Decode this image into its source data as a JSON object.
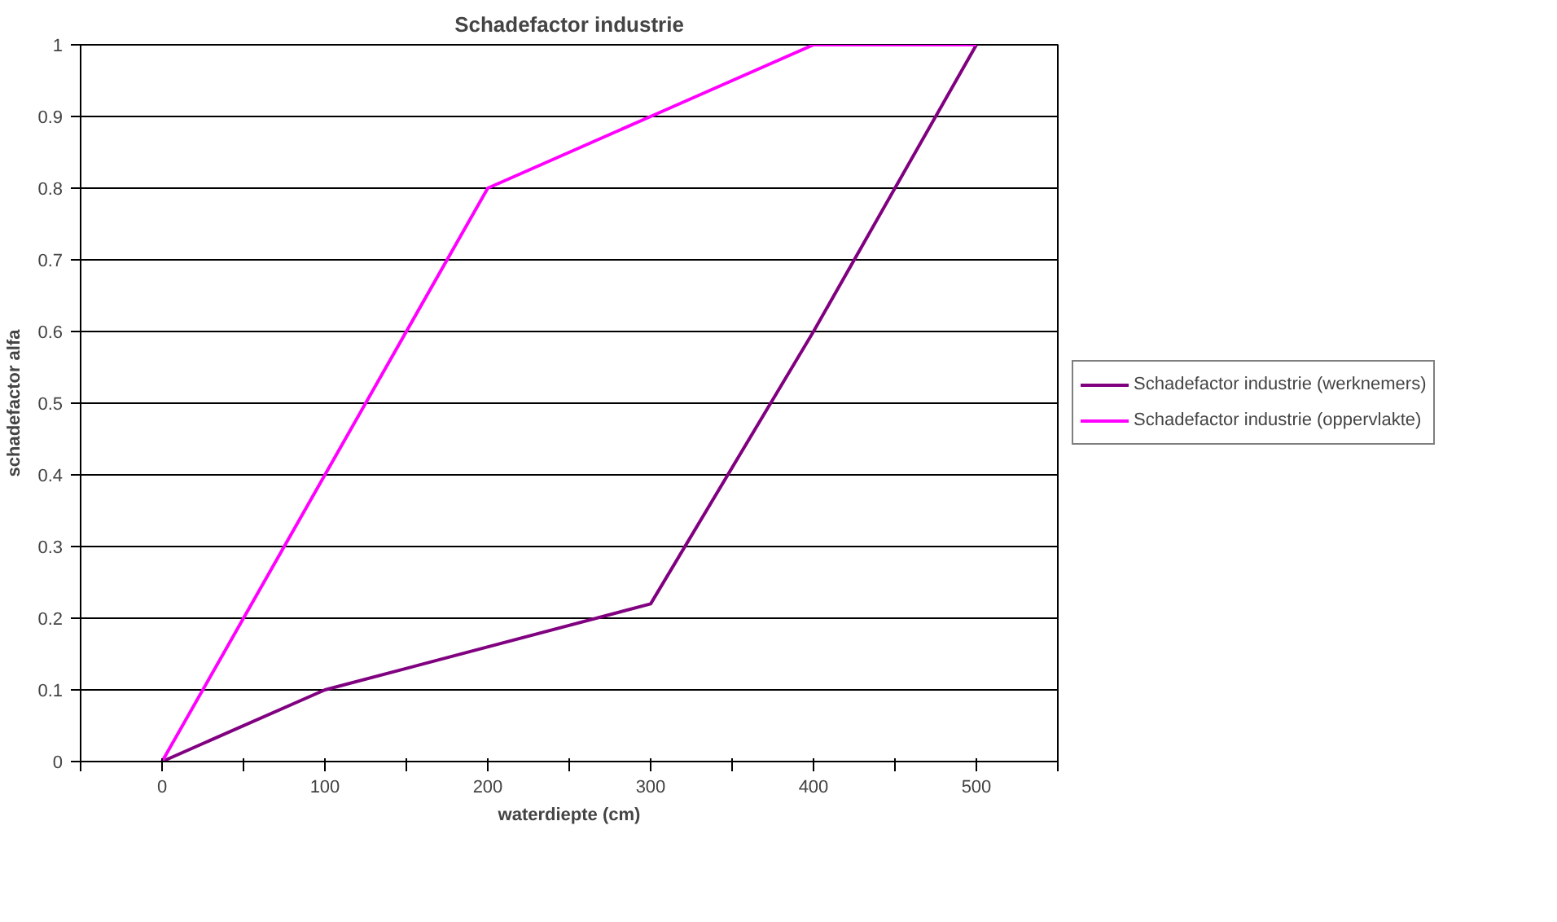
{
  "chart_data": {
    "type": "line",
    "title": "Schadefactor industrie",
    "xlabel": "waterdiepte (cm)",
    "ylabel": "schadefactor alfa",
    "series": [
      {
        "name": "Schadefactor industrie (werknemers)",
        "color": "#800080",
        "x": [
          0,
          100,
          300,
          400,
          500
        ],
        "values": [
          0,
          0.1,
          0.22,
          0.6,
          1
        ]
      },
      {
        "name": "Schadefactor industrie (oppervlakte)",
        "color": "#ff00ff",
        "x": [
          0,
          100,
          200,
          300,
          400,
          500
        ],
        "values": [
          0,
          0.4,
          0.8,
          0.9,
          1,
          1
        ]
      }
    ],
    "xlim": [
      -50,
      550
    ],
    "xticks": [
      {
        "value": -50,
        "label": null
      },
      0,
      {
        "value": 50,
        "label": null
      },
      100,
      {
        "value": 150,
        "label": null
      },
      200,
      {
        "value": 250,
        "label": null
      },
      300,
      {
        "value": 350,
        "label": null
      },
      400,
      {
        "value": 450,
        "label": null
      },
      500,
      {
        "value": 550,
        "label": null
      }
    ],
    "ylim": [
      0,
      1
    ],
    "yticks": [
      0,
      0.1,
      0.2,
      0.3,
      0.4,
      0.5,
      0.6,
      0.7,
      0.8,
      0.9,
      1
    ],
    "grid": "y",
    "legend": "right",
    "marker": "none",
    "line_style": "solid"
  }
}
